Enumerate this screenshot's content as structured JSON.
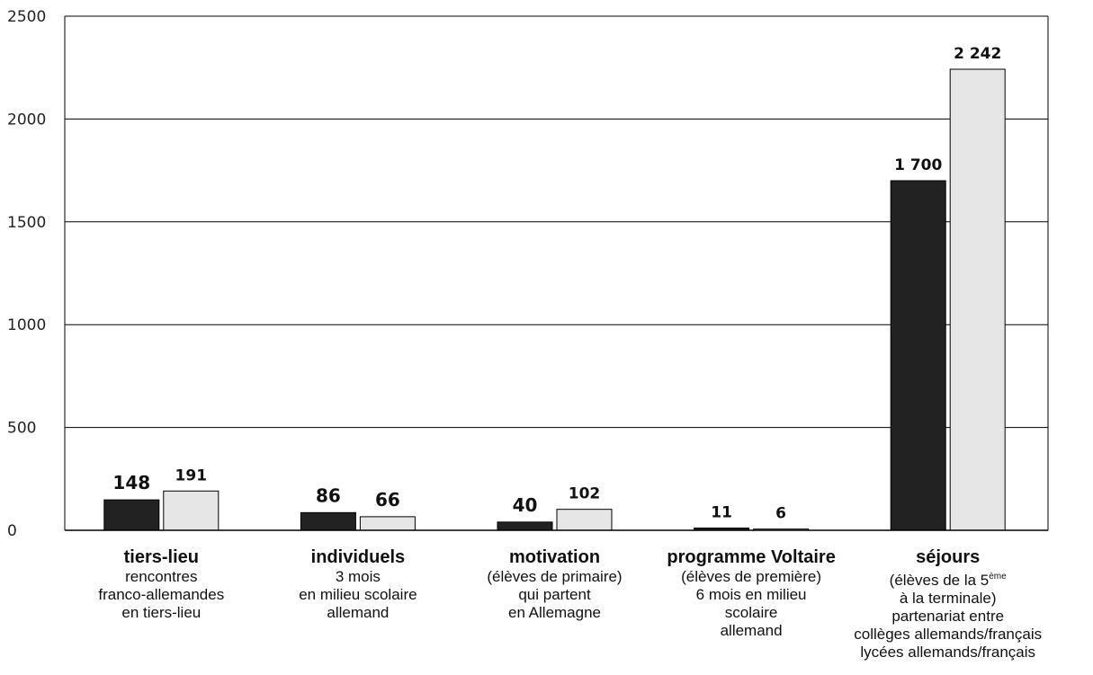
{
  "chart_data": {
    "type": "bar",
    "title": "",
    "xlabel": "",
    "ylabel": "",
    "ylim": [
      0,
      2500
    ],
    "yticks": [
      0,
      500,
      1000,
      1500,
      2000,
      2500
    ],
    "grid": true,
    "legend": "none",
    "categories": [
      "tiers-lieu",
      "individuels",
      "motivation",
      "programme Voltaire",
      "séjours"
    ],
    "series": [
      {
        "color": "#222222",
        "values": [
          148,
          86,
          40,
          11,
          1700
        ],
        "labels": [
          "148",
          "86",
          "40",
          "11",
          "1 700"
        ]
      },
      {
        "color": "#e6e6e6",
        "values": [
          191,
          66,
          102,
          6,
          2242
        ],
        "labels": [
          "191",
          "66",
          "102",
          "6",
          "2 242"
        ]
      }
    ],
    "category_descriptions": [
      [
        "rencontres",
        "franco-allemandes",
        "en tiers-lieu"
      ],
      [
        "3 mois",
        "en milieu scolaire",
        "allemand"
      ],
      [
        "(élèves de primaire)",
        "qui partent",
        "en Allemagne"
      ],
      [
        "(élèves de première)",
        "6 mois en milieu",
        "scolaire",
        "allemand"
      ],
      [
        "(élèves de la 5ème",
        "à la terminale)",
        "partenariat entre",
        "collèges allemands/français",
        "lycées allemands/français"
      ]
    ]
  }
}
